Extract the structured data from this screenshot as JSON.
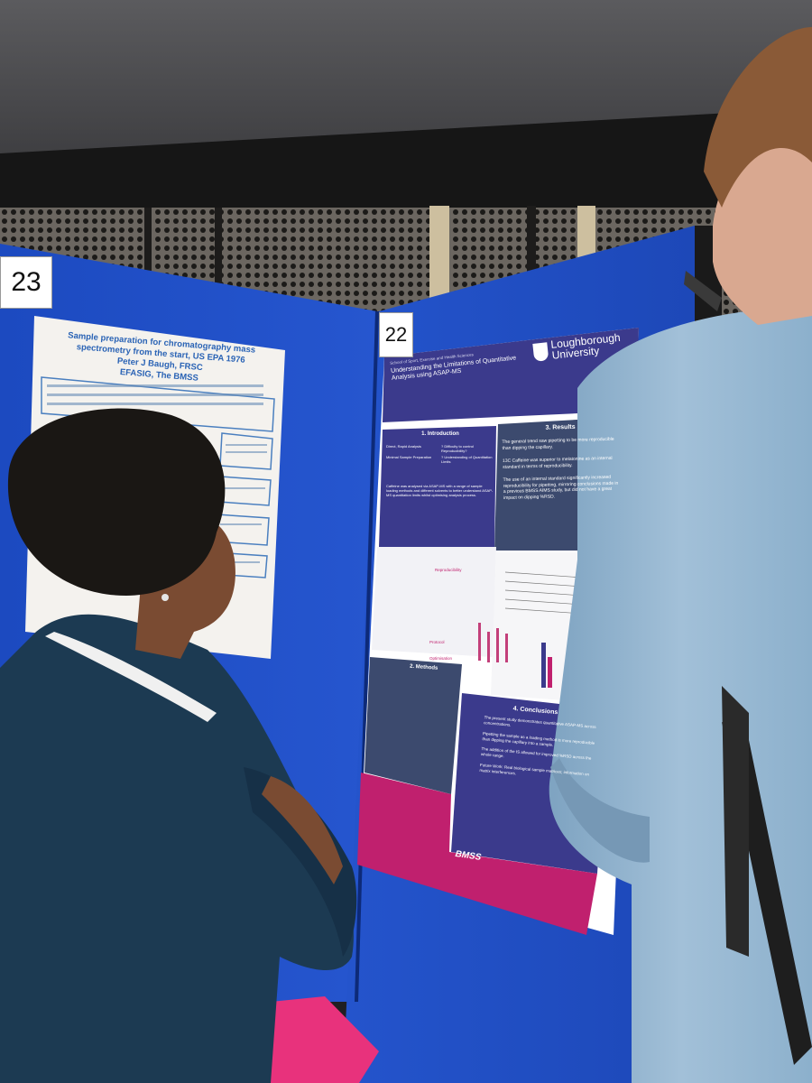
{
  "board_numbers": {
    "left": "23",
    "right": "22"
  },
  "left_poster": {
    "title": "Sample preparation for chromatography mass spectrometry from the start, US EPA 1976",
    "author": "Peter J Baugh, FRSC",
    "affiliation": "EFASIG, The BMSS"
  },
  "right_poster": {
    "school": "School of Sport, Exercise and Health Sciences",
    "title": "Understanding the Limitations of Quantitative Analysis using ASAP-MS",
    "university_line1": "Loughborough",
    "university_line2": "University",
    "sections": {
      "introduction": {
        "heading": "1. Introduction",
        "bullets": [
          "Direct, Rapid Analysis",
          "Minimal Sample Preparation",
          "? Difficulty to control Reproducibility?",
          "? Understanding of Quantitation Limits"
        ],
        "summary": "Caffeine was analysed via ASAP-MS with a range of sample loading methods and different solvents to better understand ASAP-MS quantitation limits whilst optimising analysis process."
      },
      "results": {
        "heading": "3. Results",
        "points": [
          "The general trend saw pipetting to be more reproducible than dipping the capillary.",
          "13C Caffeine was superior to melatonine as an internal standard in terms of reproducibility.",
          "The use of an internal standard significantly increased reproducibility for pipetting, mirroring conclusions made in a previous BMSS AIMS study, but did not have a great impact on dipping %RSD."
        ]
      },
      "methods": {
        "heading": "2. Methods"
      },
      "conclusions": {
        "heading": "4. Conclusions",
        "points": [
          "The present study demonstrates quantitative ASAP-MS across concentrations.",
          "Pipetting the sample as a loading method is more reproducible than dipping the capillary into a sample.",
          "The addition of the IS allowed for improved %RSD across the whole range.",
          "Future Work: Real biological sample matrices; information on matrix interferences."
        ]
      },
      "diagram_labels": {
        "reproducibility": "Reproducibility",
        "protocol": "Protocol Optimisation"
      },
      "footer_logo": "BMSS"
    }
  },
  "colors": {
    "board_blue": "#1f4fc4",
    "poster_header": "#3b3a8c",
    "poster_box_dark": "#3c4a6e",
    "poster_magenta": "#c0206e",
    "shirt_teal": "#1c3a52",
    "shirt_light_blue": "#8fb3cf",
    "bag_pink": "#e8327c"
  }
}
